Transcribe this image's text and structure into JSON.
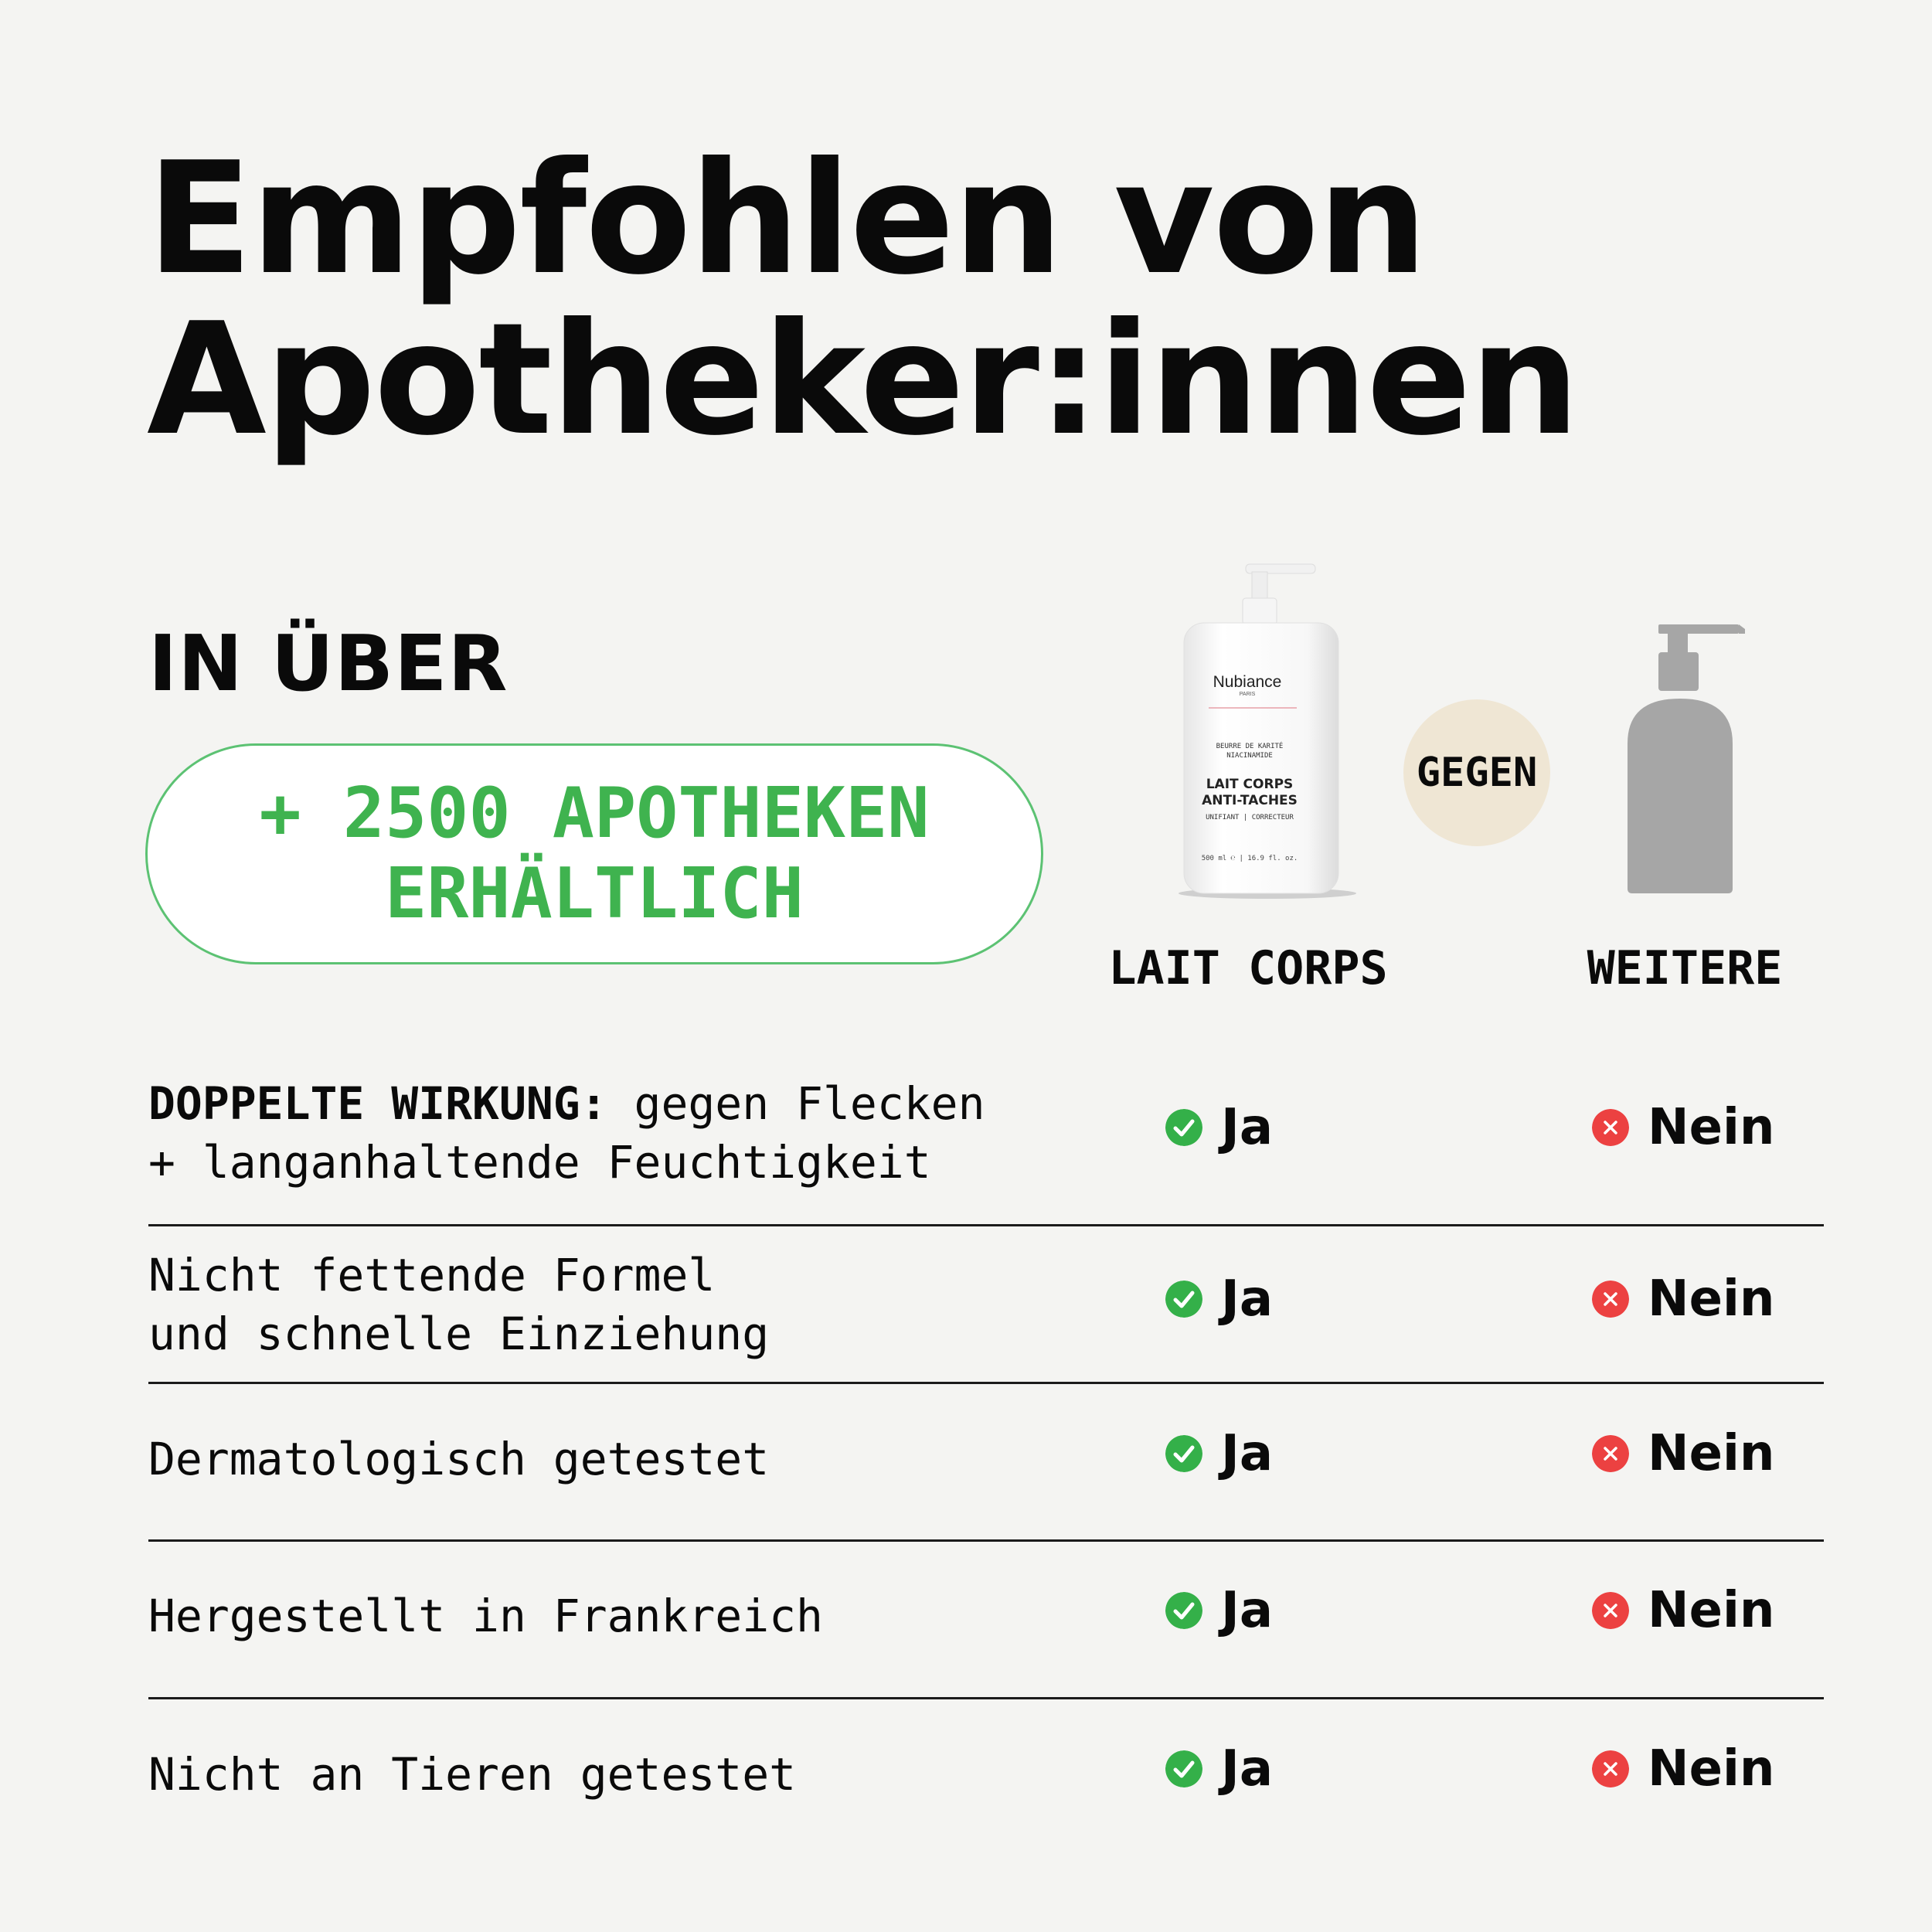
{
  "headline": {
    "line1": "Empfohlen von",
    "line2": "Apotheker:innen"
  },
  "availability": {
    "prefix": "IN ÜBER",
    "pill_line1": "+ 2500 APOTHEKEN",
    "pill_line2": "ERHÄLTLICH"
  },
  "product": {
    "brand": "Nubiance",
    "brand_sub": "PARIS",
    "ingredients_line1": "BEURRE DE KARITÉ",
    "ingredients_line2": "NIACINAMIDE",
    "name_line1": "LAIT CORPS",
    "name_line2": "ANTI-TACHES",
    "claims": "UNIFIANT | CORRECTEUR",
    "volume": "500 ml ℮ | 16.9 fl. oz."
  },
  "versus_label": "GEGEN",
  "columns": {
    "ours": "LAIT CORPS",
    "others": "WEITERE"
  },
  "rows": [
    {
      "label_bold": "DOPPELTE WIRKUNG:",
      "label_line1_rest": " gegen Flecken",
      "label_line2": "+ langanhaltende Feuchtigkeit",
      "ours": "Ja",
      "others": "Nein"
    },
    {
      "label_line1": "Nicht fettende Formel",
      "label_line2": "und schnelle Einziehung",
      "ours": "Ja",
      "others": "Nein"
    },
    {
      "label_line1": "Dermatologisch getestet",
      "ours": "Ja",
      "others": "Nein"
    },
    {
      "label_line1": "Hergestellt in Frankreich",
      "ours": "Ja",
      "others": "Nein"
    },
    {
      "label_line1": "Nicht an Tieren getestet",
      "ours": "Ja",
      "others": "Nein"
    }
  ],
  "colors": {
    "accent_green": "#3fb34f",
    "check_green": "#34b049",
    "cross_red": "#ec4141",
    "versus_bg": "#efe6d4",
    "generic_bottle": "#a6a6a6"
  }
}
